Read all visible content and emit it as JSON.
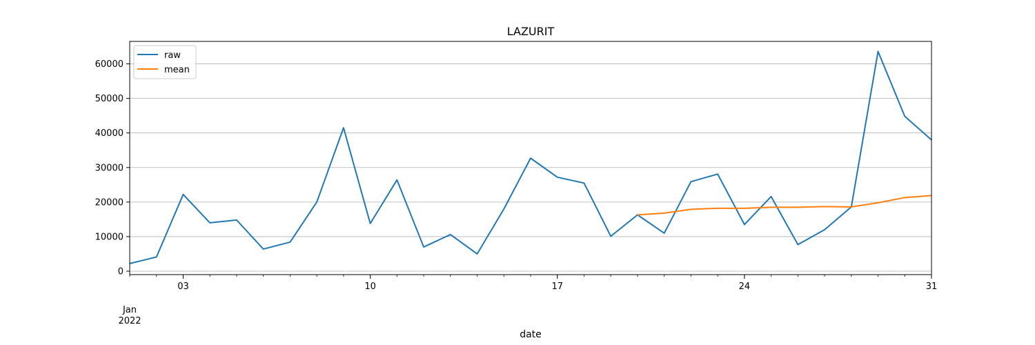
{
  "chart_data": {
    "type": "line",
    "title": "LAZURIT",
    "xlabel": "date",
    "ylabel": "",
    "x": [
      "2022-01-01",
      "2022-01-02",
      "2022-01-03",
      "2022-01-04",
      "2022-01-05",
      "2022-01-06",
      "2022-01-07",
      "2022-01-08",
      "2022-01-09",
      "2022-01-10",
      "2022-01-11",
      "2022-01-12",
      "2022-01-13",
      "2022-01-14",
      "2022-01-15",
      "2022-01-16",
      "2022-01-17",
      "2022-01-18",
      "2022-01-19",
      "2022-01-20",
      "2022-01-21",
      "2022-01-22",
      "2022-01-23",
      "2022-01-24",
      "2022-01-25",
      "2022-01-26",
      "2022-01-27",
      "2022-01-28",
      "2022-01-29",
      "2022-01-30",
      "2022-01-31"
    ],
    "xlim": [
      "2022-01-01",
      "2022-01-31"
    ],
    "ylim": [
      -1000,
      66500
    ],
    "y_ticks": [
      0,
      10000,
      20000,
      30000,
      40000,
      50000,
      60000
    ],
    "y_tick_labels": [
      "0",
      "10000",
      "20000",
      "30000",
      "40000",
      "50000",
      "60000"
    ],
    "x_major_ticks": [
      {
        "date": "2022-01-03",
        "label": "03"
      },
      {
        "date": "2022-01-10",
        "label": "10"
      },
      {
        "date": "2022-01-17",
        "label": "17"
      },
      {
        "date": "2022-01-24",
        "label": "24"
      },
      {
        "date": "2022-01-31",
        "label": "31"
      }
    ],
    "x_corner_label": [
      "Jan",
      "2022"
    ],
    "grid": "y-major",
    "legend": "top-left",
    "series": [
      {
        "name": "raw",
        "color": "#1f77b4",
        "values": [
          2200,
          4100,
          22200,
          14000,
          14800,
          6400,
          8400,
          20000,
          41500,
          13800,
          26400,
          7000,
          10600,
          5000,
          18000,
          32700,
          27200,
          25500,
          10100,
          16300,
          11000,
          25900,
          28100,
          13500,
          21600,
          7700,
          12000,
          18600,
          63600,
          44800,
          38000
        ]
      },
      {
        "name": "mean",
        "color": "#ff7f0e",
        "values": [
          null,
          null,
          null,
          null,
          null,
          null,
          null,
          null,
          null,
          null,
          null,
          null,
          null,
          null,
          null,
          null,
          null,
          null,
          null,
          16300,
          16800,
          17900,
          18200,
          18200,
          18500,
          18500,
          18700,
          18600,
          19800,
          21300,
          21900
        ]
      }
    ]
  }
}
